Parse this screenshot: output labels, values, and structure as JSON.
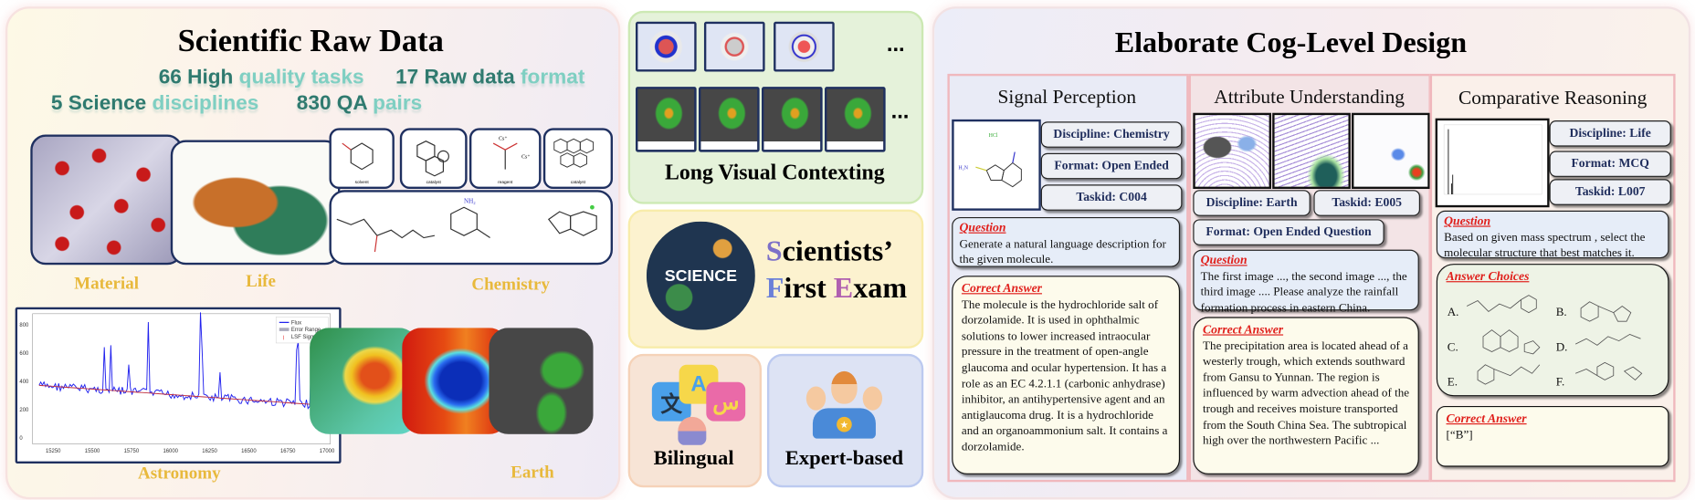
{
  "left_panel": {
    "title": "Scientific Raw Data",
    "stats": [
      {
        "number": "66",
        "dark": "High",
        "light": "quality tasks"
      },
      {
        "number": "17",
        "dark": "Raw data",
        "light": "format"
      },
      {
        "number": "5",
        "dark": "Science",
        "light": "disciplines"
      },
      {
        "number": "830",
        "dark": "QA",
        "light": "pairs"
      }
    ],
    "disciplines": {
      "material": "Material",
      "life": "Life",
      "chemistry": "Chemistry",
      "astronomy": "Astronomy",
      "earth": "Earth"
    },
    "chemistry_labels": [
      "solvent",
      "catalyst",
      "reagent",
      "catalyst"
    ],
    "astronomy_plot": {
      "legend": [
        "Flux",
        "Error Range",
        "LSF Sigma"
      ],
      "y_ticks": [
        "0",
        "200",
        "400",
        "600",
        "800"
      ],
      "x_ticks": [
        "15250",
        "15500",
        "15750",
        "16000",
        "16250",
        "16500",
        "16750",
        "17000"
      ]
    }
  },
  "middle": {
    "long_visual": {
      "title": "Long Visual Contexting",
      "ellipsis": "..."
    },
    "exam": {
      "logo_text": "SCIENCE",
      "line1_initial": "S",
      "line1_rest": "cientists’",
      "line2_initial": "F",
      "line2_mid": "irst ",
      "line2_initial2": "E",
      "line2_rest": "xam"
    },
    "bilingual": {
      "label": "Bilingual",
      "glyphs": [
        "文",
        "A",
        "س"
      ]
    },
    "expert": {
      "label": "Expert-based"
    }
  },
  "right_panel": {
    "title": "Elaborate Cog-Level Design",
    "signal": {
      "title": "Signal Perception",
      "molecule_label": "HCl",
      "tags": [
        "Discipline: Chemistry",
        "Format: Open Ended",
        "Taskid: C004"
      ],
      "question_header": "Question",
      "question": "Generate a natural language description for the given molecule.",
      "answer_header": "Correct Answer",
      "answer": "The molecule is the hydrochloride salt of dorzolamide. It is used in ophthalmic solutions to lower increased intraocular pressure in the treatment of open-angle glaucoma and ocular hypertension. It has a role as an EC 4.2.1.1 (carbonic anhydrase) inhibitor, an antihypertensive agent and an antiglaucoma drug. It is a hydrochloride and an organoammonium salt. It contains a dorzolamide."
    },
    "attribute": {
      "title": "Attribute Understanding",
      "tags": [
        "Discipline: Earth",
        "Taskid: E005",
        "Format: Open Ended Question"
      ],
      "question_header": "Question",
      "question": "The first image ..., the second image ..., the third image .... Please analyze the rainfall formation process in eastern China.",
      "answer_header": "Correct Answer",
      "answer": "The precipitation area is located ahead of a westerly trough, which extends southward from Gansu to Yunnan. The region is influenced by warm advection ahead of the trough and receives moisture transported from the South China Sea. The subtropical high over the northwestern Pacific ..."
    },
    "comparative": {
      "title": "Comparative Reasoning",
      "tags": [
        "Discipline: Life",
        "Format: MCQ",
        "Taskid: L007"
      ],
      "question_header": "Question",
      "question": "Based on given mass spectrum , select the molecular structure that best matches it.",
      "choices_header": "Answer Choices",
      "choices": [
        "A.",
        "B.",
        "C.",
        "D.",
        "E.",
        "F."
      ],
      "answer_header": "Correct Answer",
      "answer": "[“B”]"
    }
  },
  "colors": {
    "accent_red": "#e0201c",
    "tag_text": "#1f2d5c",
    "discipline_gold": "#e8b93c",
    "stat_teal": "#2f7a6f"
  }
}
